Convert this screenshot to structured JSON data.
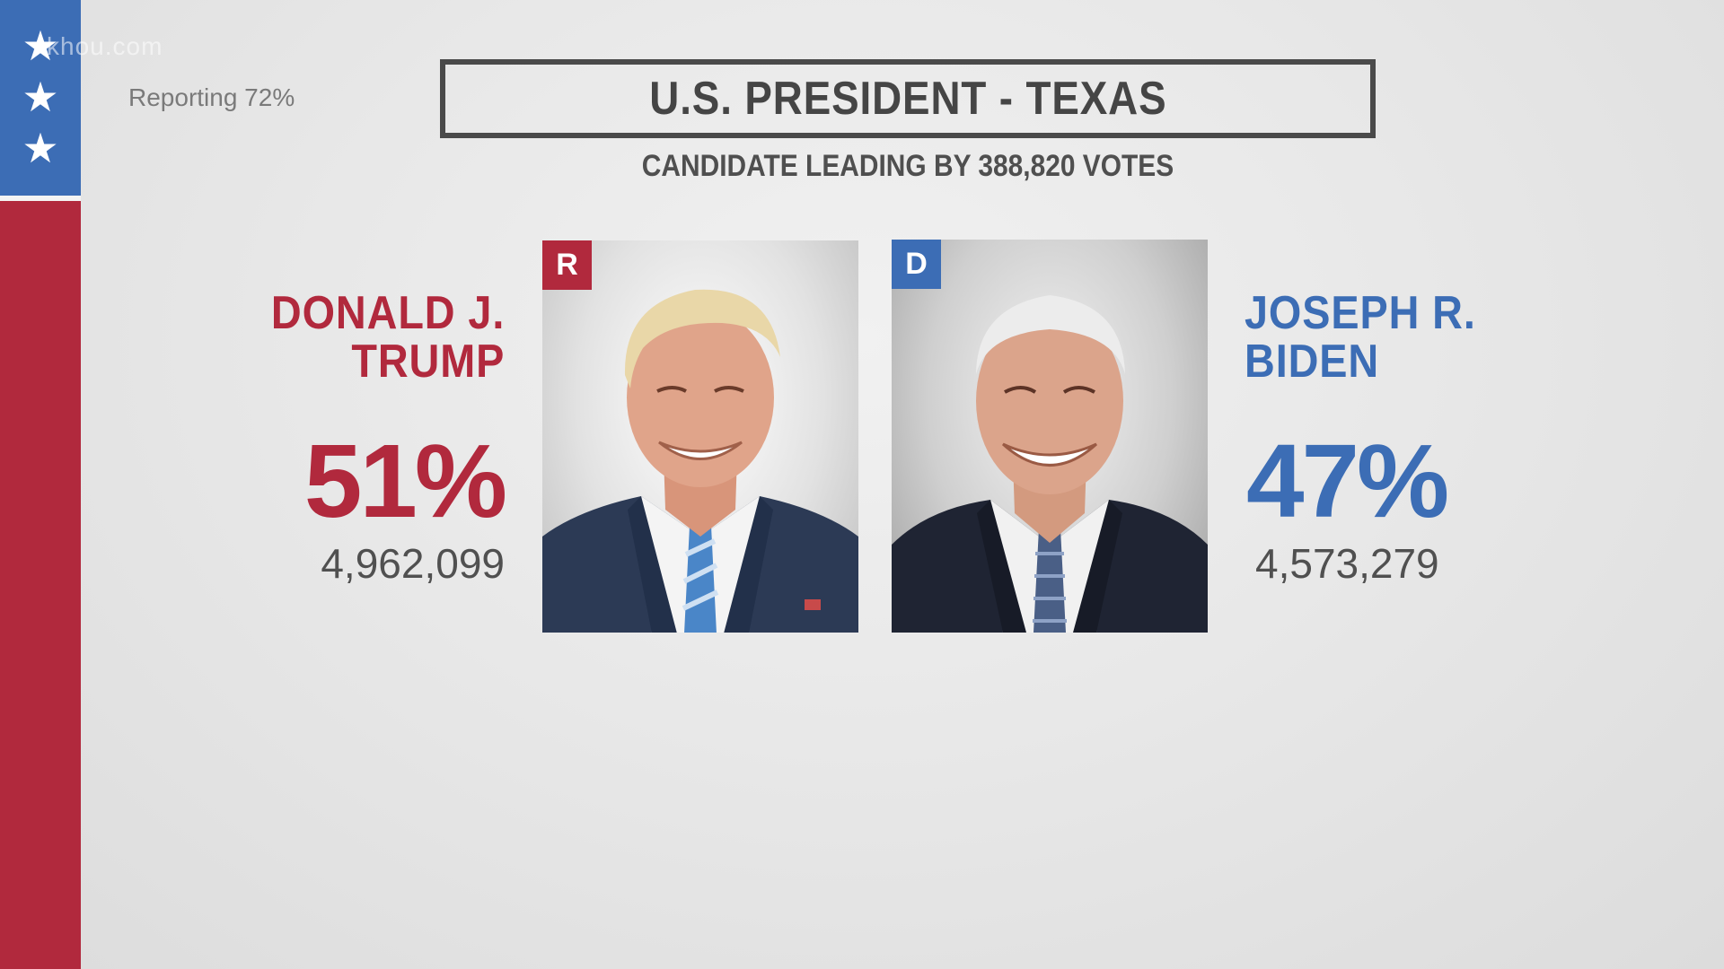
{
  "watermark": "khou.com",
  "reporting": "Reporting 72%",
  "race": {
    "title": "U.S. PRESIDENT - TEXAS",
    "lead_text": "CANDIDATE LEADING BY 388,820 VOTES"
  },
  "candidates": {
    "republican": {
      "name_line1": "DONALD J.",
      "name_line2": "TRUMP",
      "party_badge": "R",
      "percent": "51%",
      "votes": "4,962,099",
      "color": "#b1293d"
    },
    "democrat": {
      "name_line1": "JOSEPH R.",
      "name_line2": "BIDEN",
      "party_badge": "D",
      "percent": "47%",
      "votes": "4,573,279",
      "color": "#3c6db5"
    }
  },
  "colors": {
    "blue": "#3c6db5",
    "red": "#b1293d",
    "background": "#e8e8e8",
    "title_border": "#4a4a4a"
  },
  "icons": [
    "star-icon",
    "star-icon",
    "star-icon"
  ]
}
